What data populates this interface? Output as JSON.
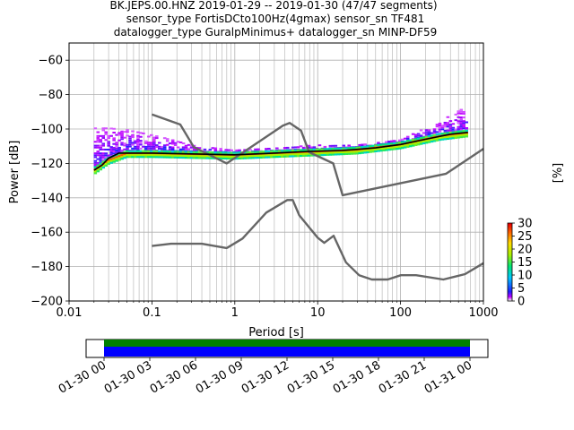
{
  "header": {
    "line1": "BK.JEPS.00.HNZ   2019-01-29 -- 2019-01-30  (47/47 segments)",
    "line2": "sensor_type FortisDCto100Hz(4gmax) sensor_sn TF481",
    "line3": "datalogger_type GuralpMinimus+ datalogger_sn MINP-DF59"
  },
  "chart_data": [
    {
      "type": "line",
      "title": "",
      "xlabel": "Period [s]",
      "ylabel": "Power [dB]",
      "xscale": "log",
      "xlim": [
        0.01,
        1000
      ],
      "ylim": [
        -200,
        -50
      ],
      "grid": true,
      "x_ticks": [
        {
          "v": 0.01,
          "label": "0.01"
        },
        {
          "v": 0.1,
          "label": "0.1"
        },
        {
          "v": 1,
          "label": "1"
        },
        {
          "v": 10,
          "label": "10"
        },
        {
          "v": 100,
          "label": "100"
        },
        {
          "v": 1000,
          "label": "1000"
        }
      ],
      "y_ticks": [
        {
          "v": -60,
          "label": "−60"
        },
        {
          "v": -80,
          "label": "−80"
        },
        {
          "v": -100,
          "label": "−100"
        },
        {
          "v": -120,
          "label": "−120"
        },
        {
          "v": -140,
          "label": "−140"
        },
        {
          "v": -160,
          "label": "−160"
        },
        {
          "v": -180,
          "label": "−180"
        },
        {
          "v": -200,
          "label": "−200"
        }
      ],
      "series": [
        {
          "role": "noise-model-high",
          "color": "#666666",
          "x": [
            0.1,
            0.22,
            0.32,
            0.8,
            3.8,
            4.6,
            6.3,
            7.9,
            15.4,
            20,
            354.8,
            1000
          ],
          "y": [
            -91.5,
            -97.4,
            -110.5,
            -120,
            -98,
            -96.5,
            -101,
            -113.5,
            -120,
            -138.5,
            -126,
            -111.5
          ]
        },
        {
          "role": "noise-model-low",
          "color": "#666666",
          "x": [
            0.1,
            0.17,
            0.4,
            0.8,
            1.24,
            2.4,
            4.3,
            5,
            6,
            10,
            12,
            15.6,
            21.9,
            31.6,
            45,
            70,
            101,
            154,
            328,
            600,
            1000
          ],
          "y": [
            -168,
            -166.7,
            -166.7,
            -169.2,
            -163.7,
            -148.6,
            -141.3,
            -141.3,
            -150.2,
            -163.2,
            -166.2,
            -162.1,
            -177.5,
            -185,
            -187.5,
            -187.5,
            -185,
            -185,
            -187.5,
            -184.4,
            -178
          ]
        },
        {
          "role": "mode",
          "color": "#000000",
          "x": [
            0.02,
            0.025,
            0.03,
            0.04,
            0.1,
            0.3,
            1,
            3,
            8,
            20,
            50,
            100,
            200,
            400,
            650
          ],
          "y": [
            -124,
            -121,
            -117,
            -114,
            -114,
            -114.5,
            -115,
            -114,
            -113,
            -112.5,
            -111,
            -109,
            -106,
            -103,
            -102
          ]
        }
      ],
      "ppsd_density": {
        "colormap": "pqlx",
        "colorbar_label": "[%]",
        "colorbar_range": [
          0,
          30
        ],
        "colorbar_ticks": [
          "0",
          "5",
          "10",
          "15",
          "20",
          "25",
          "30"
        ],
        "core_band_x": [
          0.02,
          0.03,
          0.05,
          0.1,
          0.3,
          1,
          3,
          10,
          30,
          100,
          300,
          650
        ],
        "core_band_y": [
          -124,
          -118,
          -114,
          -114,
          -114.5,
          -115,
          -114,
          -113,
          -112,
          -109,
          -104,
          -102
        ],
        "scatter_max_x": [
          0.03,
          0.05,
          0.1,
          0.15,
          0.3,
          1,
          10,
          30,
          100,
          300,
          600,
          650
        ],
        "scatter_max_y": [
          -100,
          -101,
          -104,
          -106,
          -110,
          -113,
          -110,
          -110,
          -107,
          -96,
          -88,
          -87
        ]
      }
    },
    {
      "type": "bar",
      "role": "data-coverage",
      "x_tick_labels": [
        "01-30 00",
        "01-30 03",
        "01-30 06",
        "01-30 09",
        "01-30 12",
        "01-30 15",
        "01-30 18",
        "01-30 21",
        "01-31 00"
      ],
      "series": [
        {
          "role": "processed",
          "color": "#008000",
          "start": "01-30 00",
          "end": "01-31 00"
        },
        {
          "role": "available",
          "color": "#0000ff",
          "start": "01-30 00",
          "end": "01-31 00"
        }
      ]
    }
  ]
}
